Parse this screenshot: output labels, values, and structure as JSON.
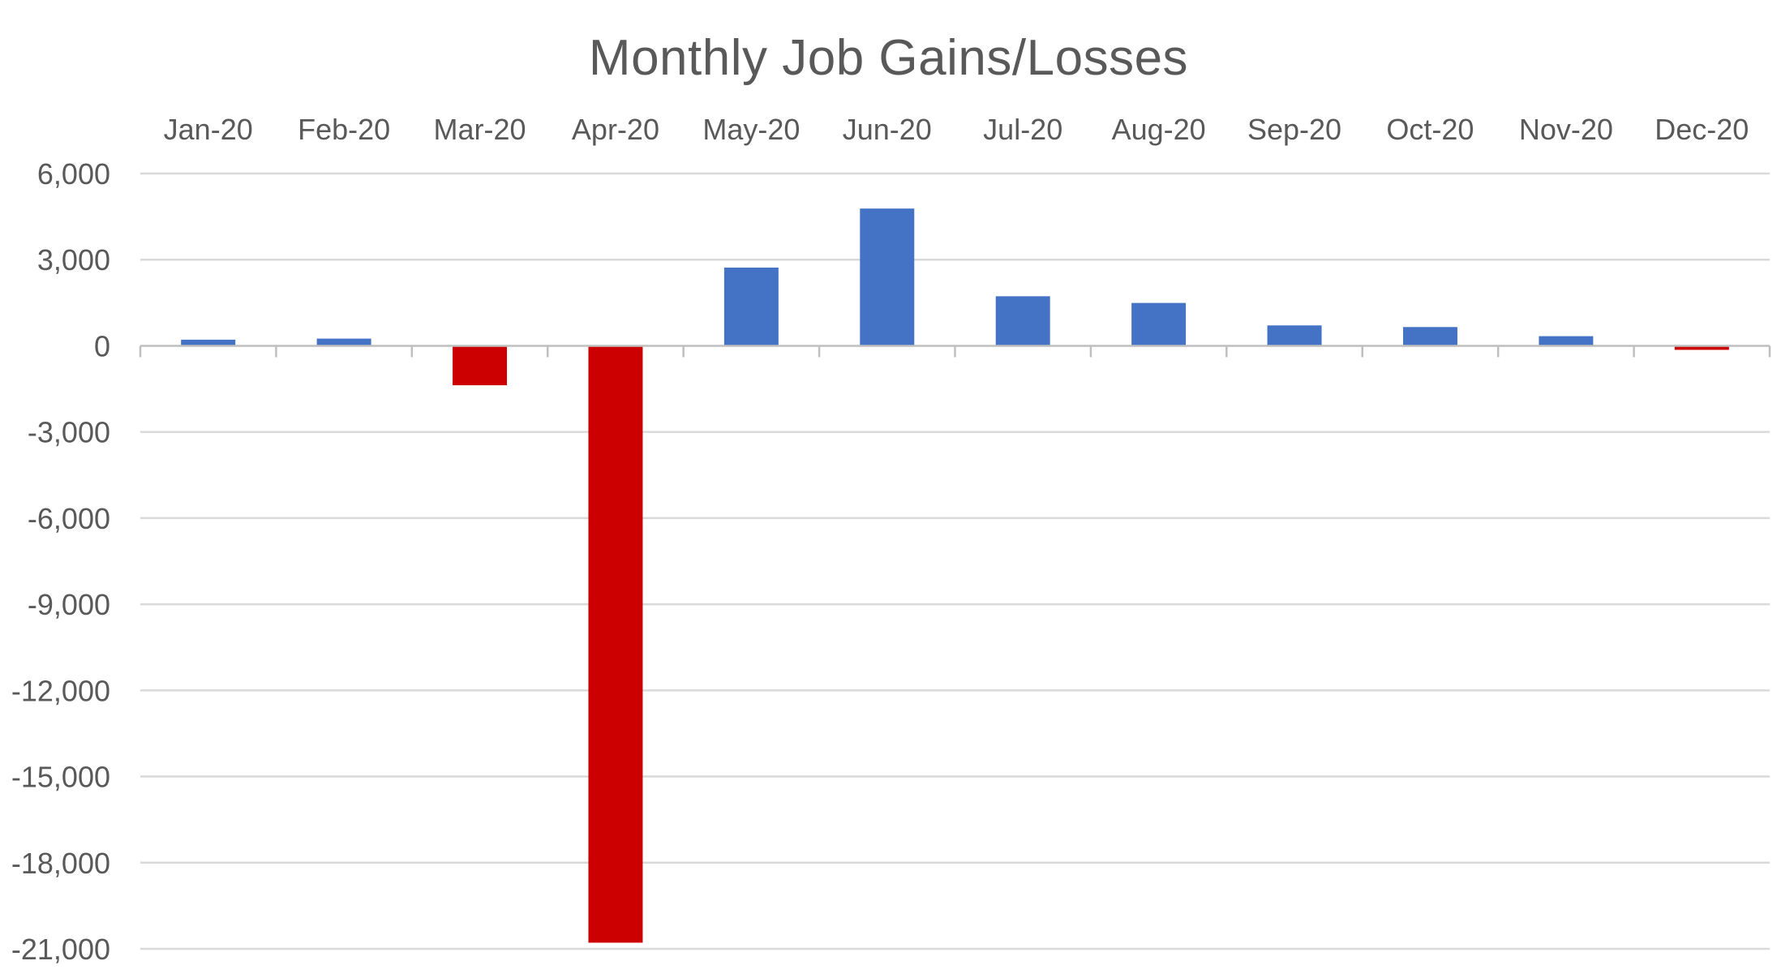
{
  "chart_data": {
    "type": "bar",
    "title": "Monthly Job Gains/Losses",
    "xlabel": "",
    "ylabel": "",
    "categories": [
      "Jan-20",
      "Feb-20",
      "Mar-20",
      "Apr-20",
      "May-20",
      "Jun-20",
      "Jul-20",
      "Aug-20",
      "Sep-20",
      "Oct-20",
      "Nov-20",
      "Dec-20"
    ],
    "values": [
      214,
      251,
      -1373,
      -20787,
      2725,
      4781,
      1726,
      1493,
      711,
      654,
      336,
      -140
    ],
    "ylim": [
      -21000,
      6000
    ],
    "yticks": [
      6000,
      3000,
      0,
      -3000,
      -6000,
      -9000,
      -12000,
      -15000,
      -18000,
      -21000
    ],
    "ytick_labels": [
      "6,000",
      "3,000",
      "0",
      "-3,000",
      "-6,000",
      "-9,000",
      "-12,000",
      "-15,000",
      "-18,000",
      "-21,000"
    ],
    "x_labels_position": "top",
    "grid": true,
    "legend": false,
    "colors": {
      "positive": "#4472C4",
      "negative": "#CC0000",
      "grid": "#D9D9D9",
      "axis": "#BFBFBF",
      "text": "#595959"
    }
  }
}
